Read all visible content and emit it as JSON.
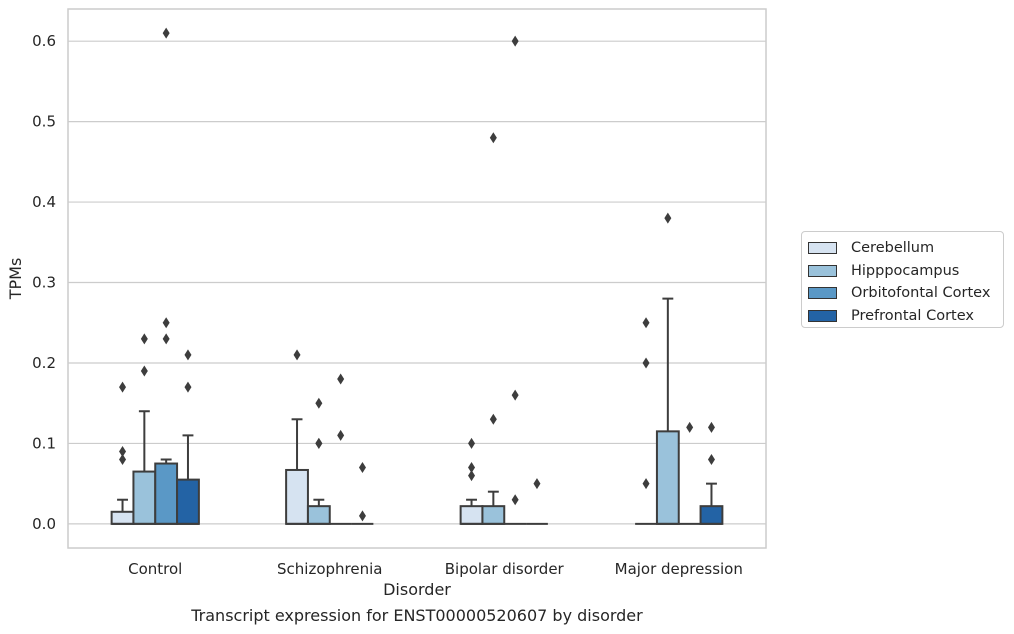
{
  "chart_data": {
    "type": "box",
    "title": "Transcript expression for ENST00000520607 by disorder",
    "xlabel": "Disorder",
    "ylabel": "TPMs",
    "ylim": [
      -0.03,
      0.64
    ],
    "yticks": [
      "0.0",
      "0.1",
      "0.2",
      "0.3",
      "0.4",
      "0.5",
      "0.6"
    ],
    "categories": [
      "Control",
      "Schizophrenia",
      "Bipolar disorder",
      "Major depression"
    ],
    "grid": true,
    "legend_position": "right",
    "series": [
      {
        "name": "Cerebellum",
        "color": "#d6e3f1",
        "boxes": [
          {
            "q1": 0.0,
            "median": 0.0,
            "q3": 0.015,
            "whisker_low": 0.0,
            "whisker_high": 0.03,
            "outliers": [
              0.08,
              0.09,
              0.17
            ]
          },
          {
            "q1": 0.0,
            "median": 0.0,
            "q3": 0.067,
            "whisker_low": 0.0,
            "whisker_high": 0.13,
            "outliers": [
              0.21
            ]
          },
          {
            "q1": 0.0,
            "median": 0.0,
            "q3": 0.022,
            "whisker_low": 0.0,
            "whisker_high": 0.03,
            "outliers": [
              0.06,
              0.07,
              0.1
            ]
          },
          {
            "q1": 0.0,
            "median": 0.0,
            "q3": 0.0,
            "whisker_low": 0.0,
            "whisker_high": 0.0,
            "outliers": [
              0.05,
              0.2,
              0.25
            ]
          }
        ]
      },
      {
        "name": "Hipppocampus",
        "color": "#9ac2db",
        "boxes": [
          {
            "q1": 0.0,
            "median": 0.0,
            "q3": 0.065,
            "whisker_low": 0.0,
            "whisker_high": 0.14,
            "outliers": [
              0.19,
              0.23
            ]
          },
          {
            "q1": 0.0,
            "median": 0.0,
            "q3": 0.022,
            "whisker_low": 0.0,
            "whisker_high": 0.03,
            "outliers": [
              0.1,
              0.1,
              0.15
            ]
          },
          {
            "q1": 0.0,
            "median": 0.0,
            "q3": 0.022,
            "whisker_low": 0.0,
            "whisker_high": 0.04,
            "outliers": [
              0.13,
              0.48
            ]
          },
          {
            "q1": 0.0,
            "median": 0.0,
            "q3": 0.115,
            "whisker_low": 0.0,
            "whisker_high": 0.28,
            "outliers": [
              0.38
            ]
          }
        ]
      },
      {
        "name": "Orbitofontal Cortex",
        "color": "#5a98c6",
        "boxes": [
          {
            "q1": 0.0,
            "median": 0.0,
            "q3": 0.075,
            "whisker_low": 0.0,
            "whisker_high": 0.08,
            "outliers": [
              0.23,
              0.25,
              0.61
            ]
          },
          {
            "q1": 0.0,
            "median": 0.0,
            "q3": 0.0,
            "whisker_low": 0.0,
            "whisker_high": 0.0,
            "outliers": [
              0.11,
              0.18
            ]
          },
          {
            "q1": 0.0,
            "median": 0.0,
            "q3": 0.0,
            "whisker_low": 0.0,
            "whisker_high": 0.0,
            "outliers": [
              0.03,
              0.16,
              0.6
            ]
          },
          {
            "q1": 0.0,
            "median": 0.0,
            "q3": 0.0,
            "whisker_low": 0.0,
            "whisker_high": 0.0,
            "outliers": [
              0.12
            ]
          }
        ]
      },
      {
        "name": "Prefrontal Cortex",
        "color": "#2363a5",
        "boxes": [
          {
            "q1": 0.0,
            "median": 0.0,
            "q3": 0.055,
            "whisker_low": 0.0,
            "whisker_high": 0.11,
            "outliers": [
              0.17,
              0.21
            ]
          },
          {
            "q1": 0.0,
            "median": 0.0,
            "q3": 0.0,
            "whisker_low": 0.0,
            "whisker_high": 0.0,
            "outliers": [
              0.01,
              0.07
            ]
          },
          {
            "q1": 0.0,
            "median": 0.0,
            "q3": 0.0,
            "whisker_low": 0.0,
            "whisker_high": 0.0,
            "outliers": [
              0.05
            ]
          },
          {
            "q1": 0.0,
            "median": 0.0,
            "q3": 0.022,
            "whisker_low": 0.0,
            "whisker_high": 0.05,
            "outliers": [
              0.08,
              0.12
            ]
          }
        ]
      }
    ]
  }
}
